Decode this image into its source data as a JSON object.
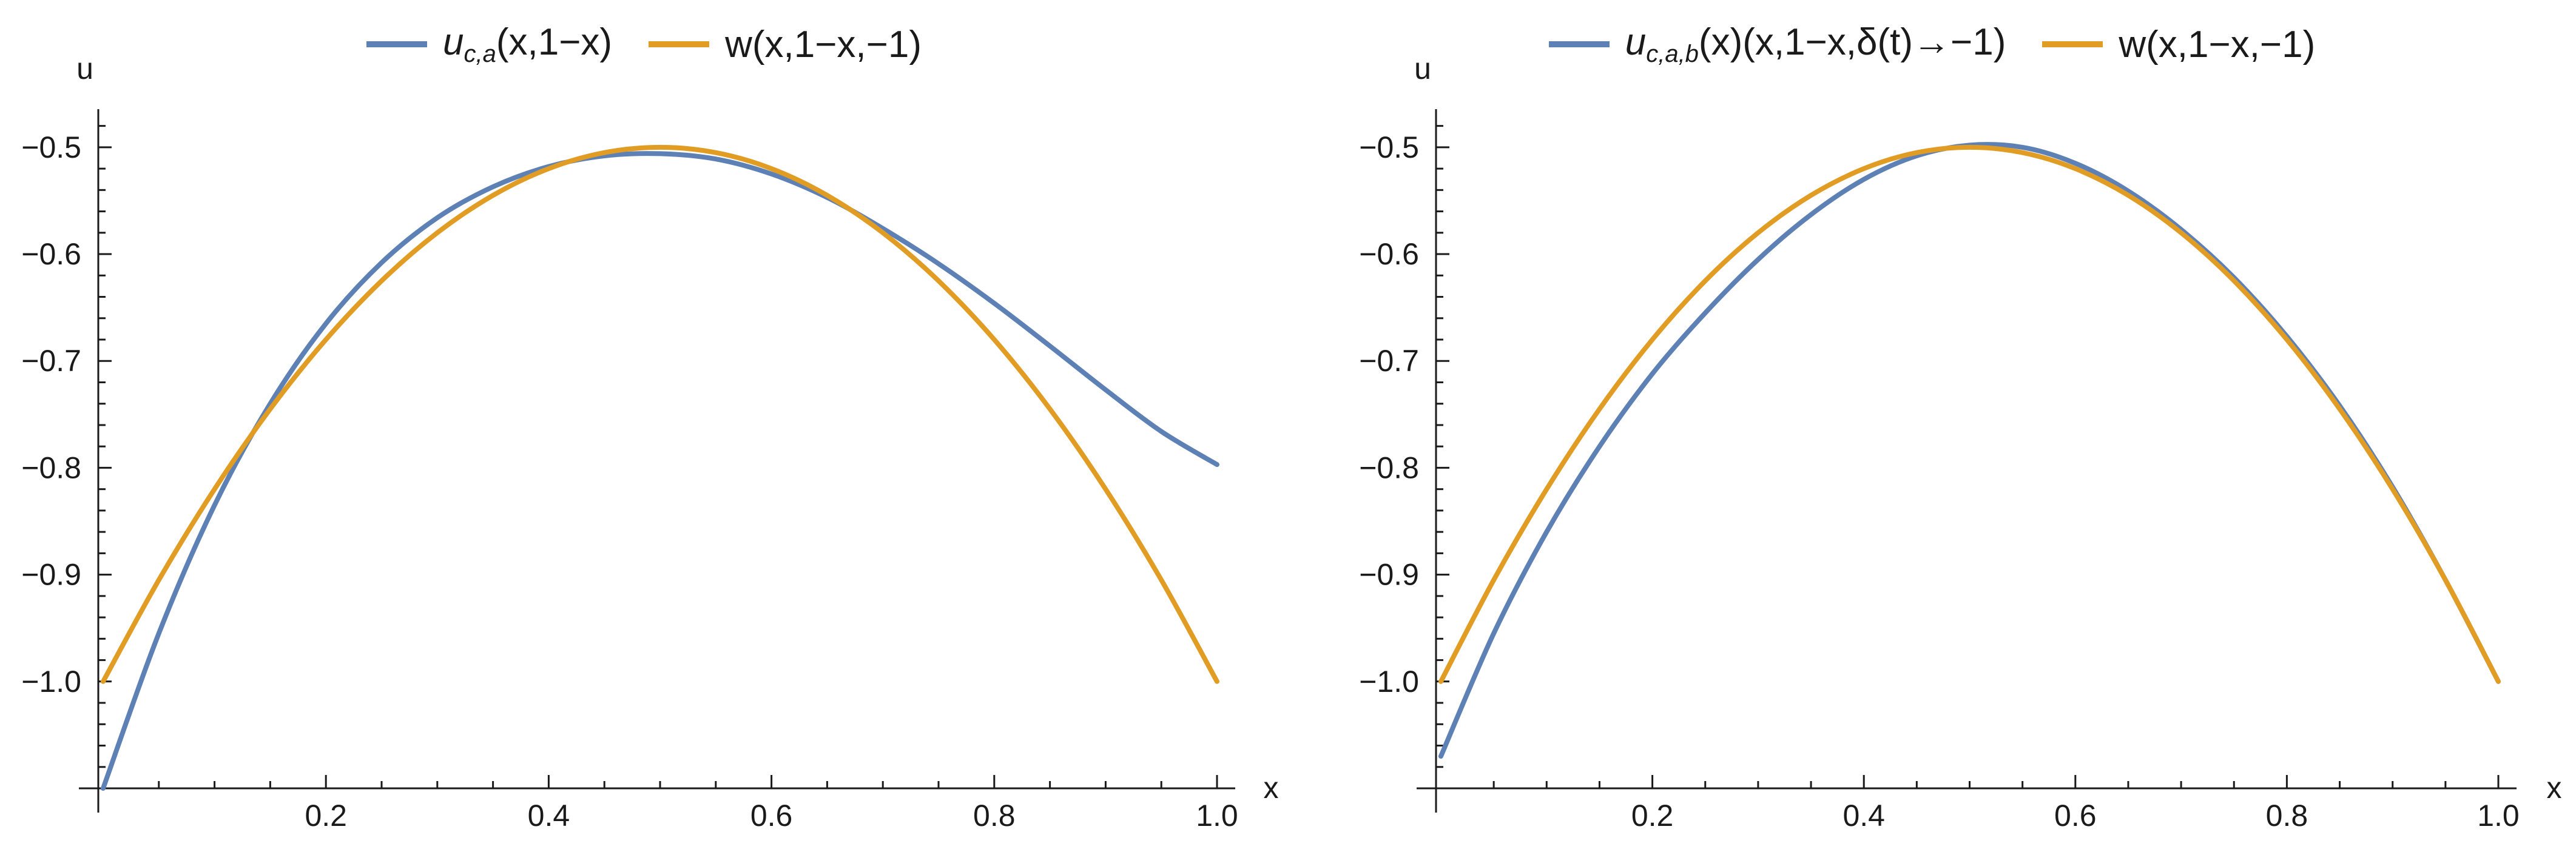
{
  "chart_data": [
    {
      "type": "line",
      "title": "",
      "xlabel": "x",
      "ylabel": "u",
      "xlim": [
        0,
        1.0
      ],
      "ylim": [
        -1.1,
        -0.47
      ],
      "x_ticks": [
        0.2,
        0.4,
        0.6,
        0.8,
        1.0
      ],
      "x_tick_labels": [
        "0.2",
        "0.4",
        "0.6",
        "0.8",
        "1.0"
      ],
      "y_ticks": [
        -0.5,
        -0.6,
        -0.7,
        -0.8,
        -0.9,
        -1.0
      ],
      "y_tick_labels": [
        "-0.5",
        "-0.6",
        "-0.7",
        "-0.8",
        "-0.9",
        "-1.0"
      ],
      "legend_position": "top-center",
      "grid": false,
      "series": [
        {
          "name": "u_{c,a}(x,1-x)",
          "label_base": "u",
          "label_sub": "c,a",
          "label_rest": "(x,1−x)",
          "color": "#5E81B5",
          "x": [
            0,
            0.05,
            0.1,
            0.15,
            0.2,
            0.25,
            0.3,
            0.35,
            0.4,
            0.45,
            0.5,
            0.55,
            0.6,
            0.65,
            0.7,
            0.75,
            0.8,
            0.85,
            0.9,
            0.95,
            1.0
          ],
          "y": [
            -1.1,
            -0.955,
            -0.835,
            -0.74,
            -0.665,
            -0.608,
            -0.566,
            -0.537,
            -0.518,
            -0.508,
            -0.506,
            -0.511,
            -0.525,
            -0.547,
            -0.576,
            -0.609,
            -0.646,
            -0.686,
            -0.727,
            -0.766,
            -0.797
          ]
        },
        {
          "name": "w(x,1-x,-1)",
          "label_base": "w(x,1−x,−1)",
          "label_sub": "",
          "label_rest": "",
          "color": "#E19C24",
          "x": [
            0,
            0.05,
            0.1,
            0.15,
            0.2,
            0.25,
            0.3,
            0.35,
            0.4,
            0.45,
            0.5,
            0.55,
            0.6,
            0.65,
            0.7,
            0.75,
            0.8,
            0.85,
            0.9,
            0.95,
            1.0
          ],
          "y": [
            -1.0,
            -0.905,
            -0.82,
            -0.745,
            -0.68,
            -0.625,
            -0.58,
            -0.545,
            -0.52,
            -0.505,
            -0.5,
            -0.505,
            -0.52,
            -0.545,
            -0.58,
            -0.625,
            -0.68,
            -0.745,
            -0.82,
            -0.905,
            -1.0
          ]
        }
      ]
    },
    {
      "type": "line",
      "title": "",
      "xlabel": "x",
      "ylabel": "u",
      "xlim": [
        0,
        1.0
      ],
      "ylim": [
        -1.1,
        -0.47
      ],
      "x_ticks": [
        0.2,
        0.4,
        0.6,
        0.8,
        1.0
      ],
      "x_tick_labels": [
        "0.2",
        "0.4",
        "0.6",
        "0.8",
        "1.0"
      ],
      "y_ticks": [
        -0.5,
        -0.6,
        -0.7,
        -0.8,
        -0.9,
        -1.0
      ],
      "y_tick_labels": [
        "-0.5",
        "-0.6",
        "-0.7",
        "-0.8",
        "-0.9",
        "-1.0"
      ],
      "legend_position": "top-center",
      "grid": false,
      "series": [
        {
          "name": "u_{c,a,b}(x)(x,1-x,δ(t)→-1)",
          "label_base": "u",
          "label_sub": "c,a,b",
          "label_rest": "(x)(x,1−x,δ(t)→−1)",
          "color": "#5E81B5",
          "x": [
            0,
            0.05,
            0.1,
            0.15,
            0.2,
            0.25,
            0.3,
            0.35,
            0.4,
            0.45,
            0.5,
            0.55,
            0.6,
            0.65,
            0.7,
            0.75,
            0.8,
            0.85,
            0.9,
            0.95,
            1.0
          ],
          "y": [
            -1.07,
            -0.955,
            -0.86,
            -0.78,
            -0.712,
            -0.655,
            -0.605,
            -0.563,
            -0.53,
            -0.508,
            -0.498,
            -0.5,
            -0.515,
            -0.541,
            -0.577,
            -0.622,
            -0.677,
            -0.742,
            -0.818,
            -0.905,
            -1.0
          ]
        },
        {
          "name": "w(x,1-x,-1)",
          "label_base": "w(x,1−x,−1)",
          "label_sub": "",
          "label_rest": "",
          "color": "#E19C24",
          "x": [
            0,
            0.05,
            0.1,
            0.15,
            0.2,
            0.25,
            0.3,
            0.35,
            0.4,
            0.45,
            0.5,
            0.55,
            0.6,
            0.65,
            0.7,
            0.75,
            0.8,
            0.85,
            0.9,
            0.95,
            1.0
          ],
          "y": [
            -1.0,
            -0.905,
            -0.82,
            -0.745,
            -0.68,
            -0.625,
            -0.58,
            -0.545,
            -0.52,
            -0.505,
            -0.5,
            -0.505,
            -0.52,
            -0.545,
            -0.58,
            -0.625,
            -0.68,
            -0.745,
            -0.82,
            -0.905,
            -1.0
          ]
        }
      ]
    }
  ]
}
